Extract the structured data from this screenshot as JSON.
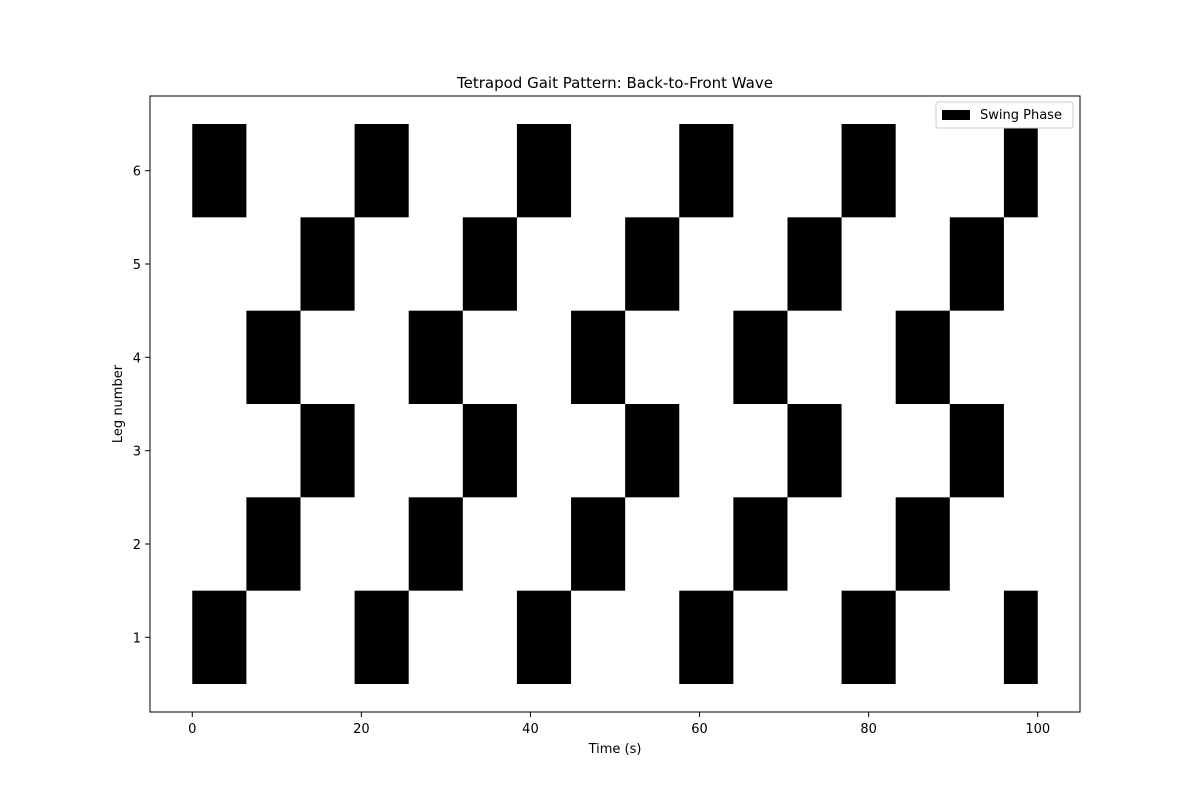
{
  "chart_data": {
    "type": "bar",
    "orientation": "horizontal-broken",
    "title": "Tetrapod Gait Pattern: Back-to-Front Wave",
    "xlabel": "Time (s)",
    "ylabel": "Leg number",
    "xlim": [
      -5,
      105
    ],
    "ylim": [
      0.2,
      6.8
    ],
    "xticks": [
      0,
      20,
      40,
      60,
      80,
      100
    ],
    "yticks": [
      1,
      2,
      3,
      4,
      5,
      6
    ],
    "grid": false,
    "legend": {
      "position": "top-right",
      "entries": [
        "Swing Phase"
      ]
    },
    "series": [
      {
        "name": "Swing Phase",
        "color": "#000000",
        "segments": [
          {
            "leg": 1,
            "start": 0,
            "end": 6.4
          },
          {
            "leg": 1,
            "start": 19.2,
            "end": 25.6
          },
          {
            "leg": 1,
            "start": 38.4,
            "end": 44.8
          },
          {
            "leg": 1,
            "start": 57.6,
            "end": 64.0
          },
          {
            "leg": 1,
            "start": 76.8,
            "end": 83.2
          },
          {
            "leg": 1,
            "start": 96.0,
            "end": 100.0
          },
          {
            "leg": 2,
            "start": 6.4,
            "end": 12.8
          },
          {
            "leg": 2,
            "start": 25.6,
            "end": 32.0
          },
          {
            "leg": 2,
            "start": 44.8,
            "end": 51.2
          },
          {
            "leg": 2,
            "start": 64.0,
            "end": 70.4
          },
          {
            "leg": 2,
            "start": 83.2,
            "end": 89.6
          },
          {
            "leg": 3,
            "start": 12.8,
            "end": 19.2
          },
          {
            "leg": 3,
            "start": 32.0,
            "end": 38.4
          },
          {
            "leg": 3,
            "start": 51.2,
            "end": 57.6
          },
          {
            "leg": 3,
            "start": 70.4,
            "end": 76.8
          },
          {
            "leg": 3,
            "start": 89.6,
            "end": 96.0
          },
          {
            "leg": 4,
            "start": 6.4,
            "end": 12.8
          },
          {
            "leg": 4,
            "start": 25.6,
            "end": 32.0
          },
          {
            "leg": 4,
            "start": 44.8,
            "end": 51.2
          },
          {
            "leg": 4,
            "start": 64.0,
            "end": 70.4
          },
          {
            "leg": 4,
            "start": 83.2,
            "end": 89.6
          },
          {
            "leg": 5,
            "start": 12.8,
            "end": 19.2
          },
          {
            "leg": 5,
            "start": 32.0,
            "end": 38.4
          },
          {
            "leg": 5,
            "start": 51.2,
            "end": 57.6
          },
          {
            "leg": 5,
            "start": 70.4,
            "end": 76.8
          },
          {
            "leg": 5,
            "start": 89.6,
            "end": 96.0
          },
          {
            "leg": 6,
            "start": 0,
            "end": 6.4
          },
          {
            "leg": 6,
            "start": 19.2,
            "end": 25.6
          },
          {
            "leg": 6,
            "start": 38.4,
            "end": 44.8
          },
          {
            "leg": 6,
            "start": 57.6,
            "end": 64.0
          },
          {
            "leg": 6,
            "start": 76.8,
            "end": 83.2
          },
          {
            "leg": 6,
            "start": 96.0,
            "end": 100.0
          }
        ]
      }
    ]
  }
}
